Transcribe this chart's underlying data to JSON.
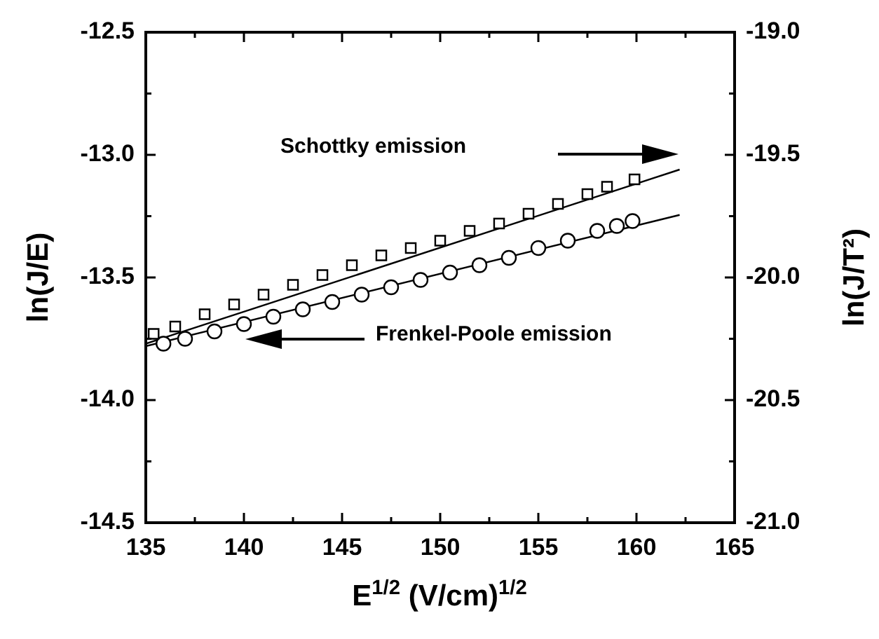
{
  "chart_data": {
    "type": "scatter",
    "xlabel": "E$^{1/2}$ (V/cm)$^{1/2}$",
    "ylabel": "ln(J/E)",
    "y2label": "ln(J/T²)",
    "xlim": [
      135,
      165
    ],
    "xticks": [
      135,
      {
        "value": 137.5,
        "label": null
      },
      140,
      {
        "value": 142.5,
        "label": null
      },
      145,
      {
        "value": 147.5,
        "label": null
      },
      150,
      {
        "value": 152.5,
        "label": null
      },
      155,
      {
        "value": 157.5,
        "label": null
      },
      160,
      {
        "value": 162.5,
        "label": null
      },
      165
    ],
    "ylim": [
      -14.5,
      -12.5
    ],
    "yticks": [
      {
        "value": -14.5,
        "label": "-14.5"
      },
      {
        "value": -14.25,
        "label": null
      },
      {
        "value": -14,
        "label": "-14.0"
      },
      {
        "value": -13.75,
        "label": null
      },
      {
        "value": -13.5,
        "label": "-13.5"
      },
      {
        "value": -13.25,
        "label": null
      },
      {
        "value": -13,
        "label": "-13.0"
      },
      {
        "value": -12.75,
        "label": null
      },
      {
        "value": -12.5,
        "label": "-12.5"
      }
    ],
    "y2lim": [
      -21,
      -19
    ],
    "y2ticks": [
      {
        "value": -21,
        "label": "-21.0"
      },
      {
        "value": -20.75,
        "label": null
      },
      {
        "value": -20.5,
        "label": "-20.5"
      },
      {
        "value": -20.25,
        "label": null
      },
      {
        "value": -20,
        "label": "-20.0"
      },
      {
        "value": -19.75,
        "label": null
      },
      {
        "value": -19.5,
        "label": "-19.5"
      },
      {
        "value": -19.25,
        "label": null
      },
      {
        "value": -19,
        "label": "-19.0"
      }
    ],
    "series": [
      {
        "type": "scatter",
        "marker": "square",
        "axis": "y2",
        "color": "#000000",
        "x": [
          135.4,
          136.5,
          138,
          139.5,
          141,
          142.5,
          144,
          145.5,
          147,
          148.5,
          150,
          151.5,
          153,
          154.5,
          156,
          157.5,
          158.5,
          159.9
        ],
        "values": [
          -20.23,
          -20.2,
          -20.15,
          -20.11,
          -20.07,
          -20.03,
          -19.99,
          -19.95,
          -19.91,
          -19.88,
          -19.85,
          -19.81,
          -19.78,
          -19.74,
          -19.7,
          -19.66,
          -19.63,
          -19.6
        ]
      },
      {
        "type": "scatter",
        "marker": "circle",
        "axis": "y",
        "color": "#000000",
        "x": [
          135.9,
          137,
          138.5,
          140,
          141.5,
          143,
          144.5,
          146,
          147.5,
          149,
          150.5,
          152,
          153.5,
          155,
          156.5,
          158,
          159,
          159.8
        ],
        "values": [
          -13.77,
          -13.75,
          -13.72,
          -13.69,
          -13.66,
          -13.63,
          -13.6,
          -13.57,
          -13.54,
          -13.51,
          -13.48,
          -13.45,
          -13.42,
          -13.38,
          -13.35,
          -13.31,
          -13.29,
          -13.27
        ]
      },
      {
        "type": "line",
        "marker": "none",
        "axis": "y2",
        "color": "#000000",
        "x": [
          135,
          162.2
        ],
        "values": [
          -20.27,
          -19.56
        ]
      },
      {
        "type": "line",
        "marker": "none",
        "axis": "y",
        "color": "#000000",
        "x": [
          135,
          162.2
        ],
        "values": [
          -13.78,
          -13.245
        ]
      }
    ],
    "annotations": [
      "Schottky emission",
      "Frenkel-Poole emission"
    ]
  }
}
